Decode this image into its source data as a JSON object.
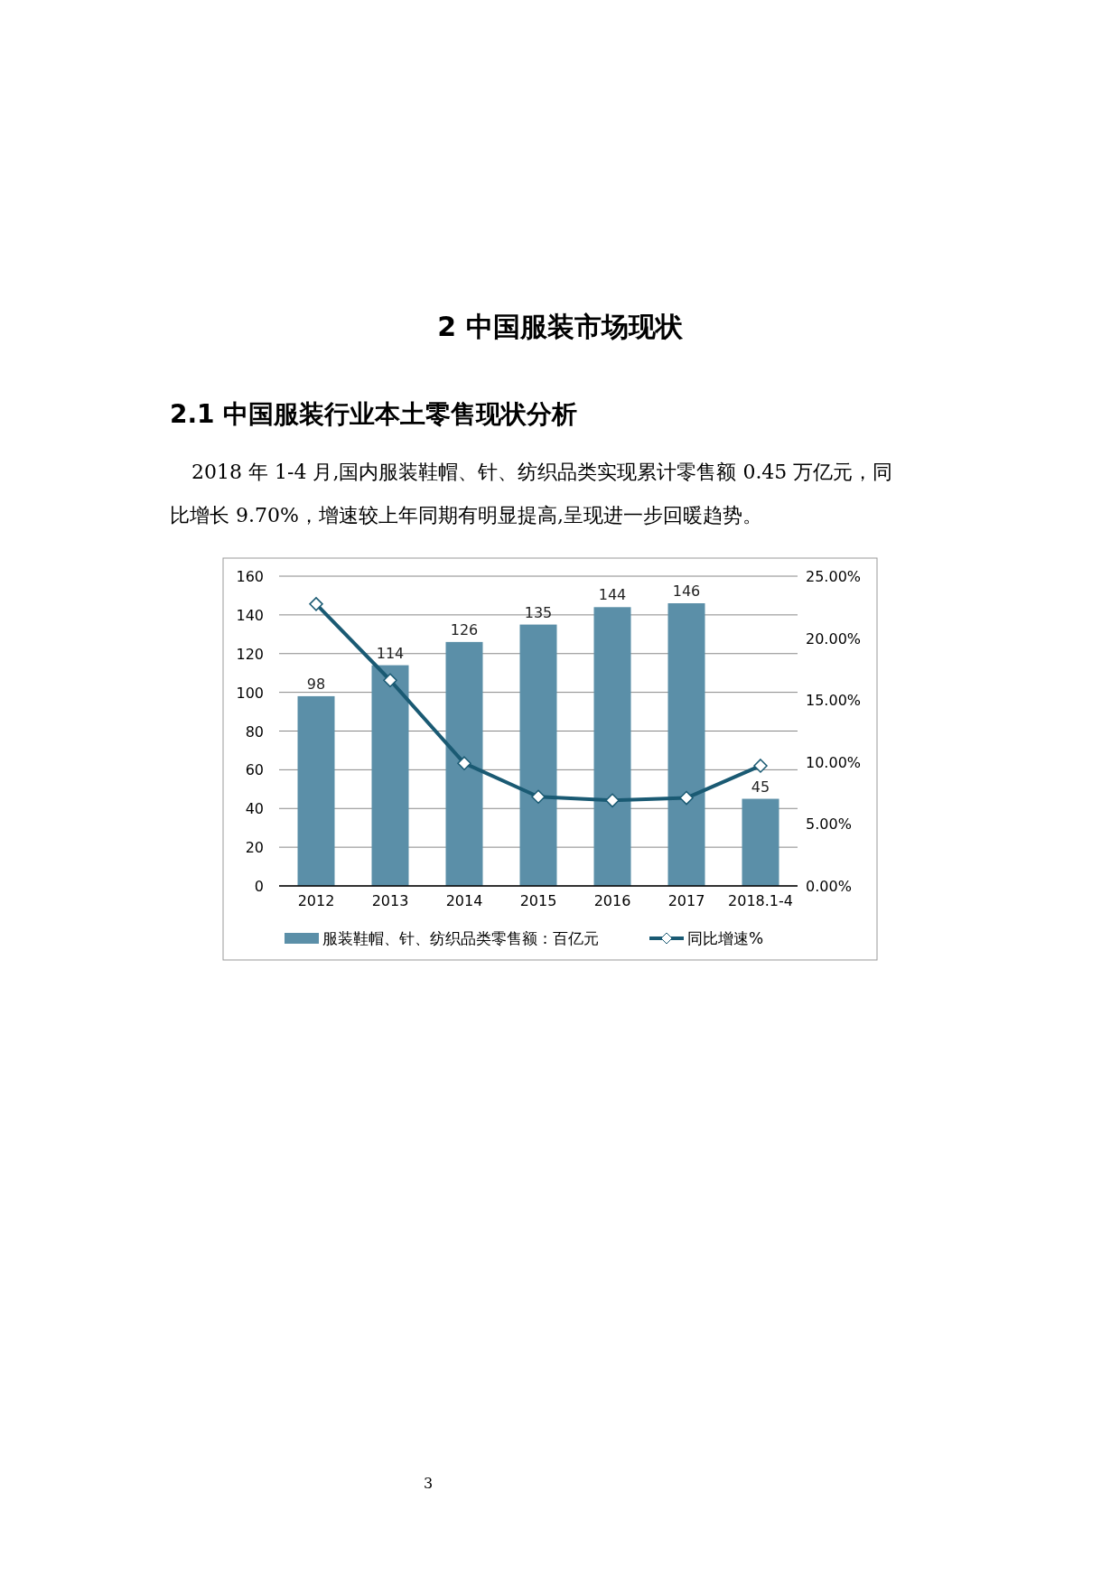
{
  "chart_data": {
    "type": "bar",
    "title": "2 中国服装市场现状",
    "subtitle": "2.1 中国服装行业本土零售现状分析",
    "annotations": [
      "2018 年 1-4 月,国内服装鞋帽、针、纺织品类实现累计零售额 0.45 万亿元，同比增长 9.70%，增速较上年同期有明显提高,呈现进一步回暖趋势。",
      "3"
    ],
    "categories": [
      "2012",
      "2013",
      "2014",
      "2015",
      "2016",
      "2017",
      "2018.1-4"
    ],
    "series": [
      {
        "name": "服装鞋帽、针、纺织品类零售额：百亿元",
        "color": "#5b8fa8",
        "values": [
          98,
          114,
          126,
          135,
          144,
          146,
          45
        ],
        "value_labels": [
          "98",
          "114",
          "126",
          "135",
          "144",
          "146",
          "45"
        ]
      },
      {
        "name": "同比增速%",
        "type": "line",
        "axis": "y2",
        "color": "#1a5a73",
        "marker": "diamond",
        "values": [
          22.75,
          16.6,
          9.9,
          7.2,
          6.9,
          7.1,
          9.7
        ]
      }
    ],
    "ylim": [
      0,
      160
    ],
    "yticks": [
      0,
      20,
      40,
      60,
      80,
      100,
      120,
      140,
      160
    ],
    "y2lim": [
      0,
      25
    ],
    "y2ticks": [
      {
        "value": 0,
        "label": "0.00%"
      },
      {
        "value": 5,
        "label": "5.00%"
      },
      {
        "value": 10,
        "label": "10.00%"
      },
      {
        "value": 15,
        "label": "15.00%"
      },
      {
        "value": 20,
        "label": "20.00%"
      },
      {
        "value": 25,
        "label": "25.00%"
      }
    ],
    "grid": "y",
    "legend": "bottom"
  }
}
